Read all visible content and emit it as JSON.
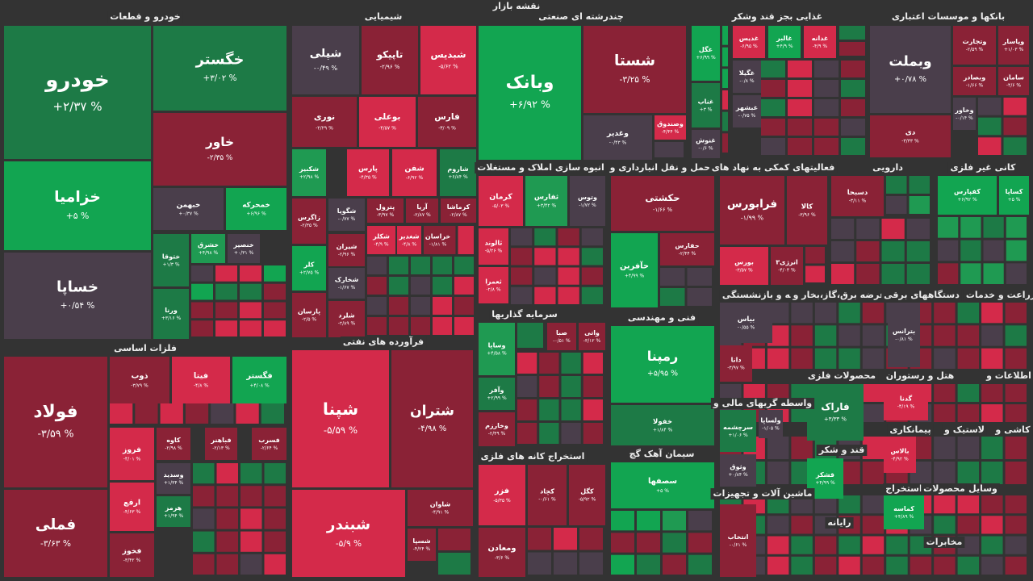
{
  "title": "نقشه بازار",
  "sectors": [
    {
      "title": "خودرو و قطعات",
      "tiles": [
        {
          "name": "خودرو",
          "change": "+۲/۳۷ %",
          "color": "#1d7a46"
        },
        {
          "name": "خگستر",
          "change": "+۳/۰۲ %",
          "color": "#1d7a46"
        },
        {
          "name": "خاور",
          "change": "-۲/۳۵ %",
          "color": "#8a2236"
        },
        {
          "name": "خزامیا",
          "change": "+۵ %",
          "color": "#12a551"
        },
        {
          "name": "خساپا",
          "change": "+۰/۵۴ %",
          "color": "#4a3e4b"
        },
        {
          "name": "خبهمن",
          "change": "+۰/۳۷ %",
          "color": "#4a3e4b"
        },
        {
          "name": "خمحرکه",
          "change": "+۶/۹۶ %",
          "color": "#12a551"
        },
        {
          "name": "خشرق",
          "change": "+۴/۹۸ %",
          "color": "#1f9a52"
        },
        {
          "name": "خنصیر",
          "change": "+۰/۳۱ %",
          "color": "#4a3e4b"
        },
        {
          "name": "ختوقا",
          "change": "+۱/۳ %",
          "color": "#1d7a46"
        },
        {
          "name": "ورنا",
          "change": "+۳/۱۶ %",
          "color": "#1d7a46"
        }
      ]
    },
    {
      "title": "شیمیایی",
      "tiles": [
        {
          "name": "شپلی",
          "change": "-۰/۴۹ %",
          "color": "#4a3e4b"
        },
        {
          "name": "تاپیکو",
          "change": "-۲/۹۶ %",
          "color": "#8a2236"
        },
        {
          "name": "شبدیس",
          "change": "-۵/۶۲ %",
          "color": "#d42a4a"
        },
        {
          "name": "نوری",
          "change": "-۲/۲۹ %",
          "color": "#8a2236"
        },
        {
          "name": "بوعلی",
          "change": "-۴/۵۷ %",
          "color": "#d42a4a"
        },
        {
          "name": "فارس",
          "change": "-۳/۰۹ %",
          "color": "#8a2236"
        },
        {
          "name": "شکبیر",
          "change": "+۲/۹۸ %",
          "color": "#1f9a52"
        },
        {
          "name": "پارس",
          "change": "-۴/۳۵ %",
          "color": "#d42a4a"
        },
        {
          "name": "شفن",
          "change": "-۶/۹۲ %",
          "color": "#d42a4a"
        },
        {
          "name": "شاروم",
          "change": "+۶/۸۴ %",
          "color": "#1d7a46"
        },
        {
          "name": "زاگرس",
          "change": "-۲/۳۵ %",
          "color": "#8a2236"
        },
        {
          "name": "شگویا",
          "change": "-۰/۷۷ %",
          "color": "#4a3e4b"
        },
        {
          "name": "پترول",
          "change": "-۳/۹۷ %",
          "color": "#8a2236"
        },
        {
          "name": "آریا",
          "change": "-۲/۸۷ %",
          "color": "#8a2236"
        },
        {
          "name": "کرماشا",
          "change": "-۲/۸۷ %",
          "color": "#8a2236"
        },
        {
          "name": "کلر",
          "change": "+۲/۷۵ %",
          "color": "#12a551"
        },
        {
          "name": "شیران",
          "change": "-۲/۹۶ %",
          "color": "#8a2236"
        },
        {
          "name": "شکلر",
          "change": "-۴/۹ %",
          "color": "#d42a4a"
        },
        {
          "name": "شغدیر",
          "change": "-۴/۸ %",
          "color": "#d42a4a"
        },
        {
          "name": "خراسان",
          "change": "-۱/۸۱ %",
          "color": "#8a2236"
        },
        {
          "name": "شخارک",
          "change": "-۱/۶۷ %",
          "color": "#4a3e4b"
        },
        {
          "name": "پارسان",
          "change": "-۲/۵ %",
          "color": "#8a2236"
        },
        {
          "name": "شلرد",
          "change": "-۲/۸۹ %",
          "color": "#8a2236"
        }
      ]
    },
    {
      "title": "فلزات اساسی",
      "tiles": [
        {
          "name": "فولاد",
          "change": "-۳/۵۹ %",
          "color": "#8a2236"
        },
        {
          "name": "فملی",
          "change": "-۳/۶۳ %",
          "color": "#8a2236"
        },
        {
          "name": "ذوب",
          "change": "-۳/۷۹ %",
          "color": "#8a2236"
        },
        {
          "name": "فیتا",
          "change": "-۴/۸ %",
          "color": "#d42a4a"
        },
        {
          "name": "فگستر",
          "change": "+۴/۰۸ %",
          "color": "#12a551"
        },
        {
          "name": "فروز",
          "change": "-۴/۰۱ %",
          "color": "#d42a4a"
        },
        {
          "name": "کاوه",
          "change": "-۲/۹۸ %",
          "color": "#8a2236"
        },
        {
          "name": "فباهنر",
          "change": "-۲/۱۳ %",
          "color": "#8a2236"
        },
        {
          "name": "فسرب",
          "change": "-۲/۶۴ %",
          "color": "#8a2236"
        },
        {
          "name": "ارفع",
          "change": "-۴/۶۳ %",
          "color": "#d42a4a"
        },
        {
          "name": "وسدید",
          "change": "+۱/۳۴ %",
          "color": "#4a3e4b"
        },
        {
          "name": "هرمز",
          "change": "+۱/۹۴ %",
          "color": "#1d7a46"
        },
        {
          "name": "فخوز",
          "change": "-۳/۴۲ %",
          "color": "#8a2236"
        }
      ]
    },
    {
      "title": "فرآورده های نفتی",
      "tiles": [
        {
          "name": "شپنا",
          "change": "-۵/۵۹ %",
          "color": "#d42a4a"
        },
        {
          "name": "شتران",
          "change": "-۴/۹۸ %",
          "color": "#8a2236"
        },
        {
          "name": "شبندر",
          "change": "-۵/۹ %",
          "color": "#d42a4a"
        },
        {
          "name": "شاوان",
          "change": "-۴/۹۱ %",
          "color": "#8a2236"
        },
        {
          "name": "شسپا",
          "change": "-۴/۲۴ %",
          "color": "#8a2236"
        }
      ]
    },
    {
      "title": "چندرشته ای صنعتی",
      "tiles": [
        {
          "name": "وبانک",
          "change": "+۶/۹۲ %",
          "color": "#12a551"
        },
        {
          "name": "شستا",
          "change": "-۳/۲۵ %",
          "color": "#8a2236"
        },
        {
          "name": "وغدیر",
          "change": "-۰/۴۳ %",
          "color": "#4a3e4b"
        },
        {
          "name": "وصندوق",
          "change": "-۴/۴۴ %",
          "color": "#d42a4a"
        }
      ]
    },
    {
      "title": "انبوه سازی املاک و مستغلات",
      "tiles": [
        {
          "name": "کرمان",
          "change": "-۵/۰۳ %",
          "color": "#d42a4a"
        },
        {
          "name": "ثفارس",
          "change": "+۳/۴۲ %",
          "color": "#1f9a52"
        },
        {
          "name": "وتوس",
          "change": "-۱/۷۲ %",
          "color": "#4a3e4b"
        },
        {
          "name": "ثالوند",
          "change": "-۵/۲۶ %",
          "color": "#d42a4a"
        },
        {
          "name": "ثعمرا",
          "change": "-۲/۸ %",
          "color": "#d42a4a"
        }
      ]
    },
    {
      "title": "حمل و نقل انبارداری و",
      "tiles": [
        {
          "name": "حکشتی",
          "change": "-۱/۶۶ %",
          "color": "#8a2236"
        },
        {
          "name": "حفارس",
          "change": "-۲/۴۴ %",
          "color": "#8a2236"
        },
        {
          "name": "حآفرین",
          "change": "+۴/۹۹ %",
          "color": "#12a551"
        }
      ]
    },
    {
      "title": "سرمایه گذاریها",
      "tiles": [
        {
          "name": "صبا",
          "change": "-۰/۵۱ %",
          "color": "#8a2236"
        },
        {
          "name": "واتی",
          "change": "-۳/۱۲ %",
          "color": "#8a2236"
        },
        {
          "name": "وساپا",
          "change": "+۴/۵۸ %",
          "color": "#1f9a52"
        },
        {
          "name": "وآفر",
          "change": "+۲/۹۹ %",
          "color": "#1d7a46"
        },
        {
          "name": "وخارزم",
          "change": "-۲/۴۹ %",
          "color": "#8a2236"
        }
      ]
    },
    {
      "title": "فنی و مهندسی",
      "tiles": [
        {
          "name": "رمپنا",
          "change": "+۵/۹۵ %",
          "color": "#12a551"
        },
        {
          "name": "خفولا",
          "change": "+۱/۸۴ %",
          "color": "#1d7a46"
        }
      ]
    },
    {
      "title": "استخراج کانه های فلزی",
      "tiles": [
        {
          "name": "فزر",
          "change": "-۵/۳۵ %",
          "color": "#d42a4a"
        },
        {
          "name": "کچاد",
          "change": "-۰/۶۱ %",
          "color": "#8a2236"
        },
        {
          "name": "کگل",
          "change": "-۵/۹۲ %",
          "color": "#8a2236"
        },
        {
          "name": "ومعادن",
          "change": "-۳/۶ %",
          "color": "#8a2236"
        }
      ]
    },
    {
      "title": "سیمان آهک گچ",
      "tiles": [
        {
          "name": "سصفها",
          "change": "+۵ %",
          "color": "#12a551"
        }
      ]
    },
    {
      "title": "غذایی بجز قند وشکر",
      "tiles": [
        {
          "name": "غگل",
          "change": "+۶/۹۹ %",
          "color": "#12a551"
        },
        {
          "name": "غدیس",
          "change": "-۶/۹۵ %",
          "color": "#d42a4a"
        },
        {
          "name": "غالبر",
          "change": "+۴/۹ %",
          "color": "#12a551"
        },
        {
          "name": "غدانه",
          "change": "-۴/۹ %",
          "color": "#d42a4a"
        },
        {
          "name": "غگیلا",
          "change": "-۰/۸ %",
          "color": "#4a3e4b"
        },
        {
          "name": "غناب",
          "change": "+۳ %",
          "color": "#1d7a46"
        },
        {
          "name": "غبشهر",
          "change": "-۰/۷۵ %",
          "color": "#4a3e4b"
        },
        {
          "name": "غنوش",
          "change": "-۰/۶ %",
          "color": "#4a3e4b"
        }
      ]
    },
    {
      "title": "بانکها و موسسات اعتباری",
      "tiles": [
        {
          "name": "وبملت",
          "change": "+۰/۷۸ %",
          "color": "#4a3e4b"
        },
        {
          "name": "دی",
          "change": "-۳/۳۳ %",
          "color": "#8a2236"
        },
        {
          "name": "وتجارت",
          "change": "-۲/۵۹ %",
          "color": "#8a2236"
        },
        {
          "name": "وپاسار",
          "change": "+۱/۰۳ %",
          "color": "#8a2236"
        },
        {
          "name": "وبصادر",
          "change": "-۱/۶۶ %",
          "color": "#8a2236"
        },
        {
          "name": "سامان",
          "change": "-۴/۶ %",
          "color": "#8a2236"
        },
        {
          "name": "وخاور",
          "change": "-۰/۱۴ %",
          "color": "#4a3e4b"
        }
      ]
    },
    {
      "title": "فعالیتهای کمکی به نهاد های",
      "tiles": [
        {
          "name": "فرابورس",
          "change": "-۱/۹۹ %",
          "color": "#8a2236"
        },
        {
          "name": "کالا",
          "change": "-۳/۹۶ %",
          "color": "#8a2236"
        },
        {
          "name": "بورس",
          "change": "-۳/۵۷ %",
          "color": "#d42a4a"
        },
        {
          "name": "انرژی۳",
          "change": "-۴/۰۴ %",
          "color": "#8a2236"
        }
      ]
    },
    {
      "title": "دارویی",
      "tiles": [
        {
          "name": "دسبحا",
          "change": "-۳/۱۱ %",
          "color": "#8a2236"
        }
      ]
    },
    {
      "title": "کانی غیر فلزی",
      "tiles": [
        {
          "name": "کفپارس",
          "change": "+۶/۹۲ %",
          "color": "#12a551"
        },
        {
          "name": "کساپا",
          "change": "+۵ %",
          "color": "#12a551"
        }
      ]
    },
    {
      "title": "بیمه و بازنشستگی",
      "tiles": [
        {
          "name": "بیاس",
          "change": "-۰/۵۵ %",
          "color": "#4a3e4b"
        },
        {
          "name": "دانا",
          "change": "-۳/۹۷ %",
          "color": "#8a2236"
        }
      ]
    },
    {
      "title": "عرضه برق،گاز،بخار و"
    },
    {
      "title": "دستگاههای برقی",
      "tiles": [
        {
          "name": "بترانس",
          "change": "-۰/۸۱ %",
          "color": "#4a3e4b"
        }
      ]
    },
    {
      "title": "زراعت و خدمات"
    },
    {
      "title": "محصولات فلزی",
      "tiles": [
        {
          "name": "فاراک",
          "change": "+۳/۳۳ %",
          "color": "#1d7a46"
        }
      ]
    },
    {
      "title": "هتل و رستوران",
      "tiles": [
        {
          "name": "گدنا",
          "change": "-۴/۱۹ %",
          "color": "#d42a4a"
        }
      ]
    },
    {
      "title": "اطلاعات و"
    },
    {
      "title": "واسطه گریهای مالی و",
      "tiles": [
        {
          "name": "سرچشمه",
          "change": "+۱/۰۶ %",
          "color": "#1d7a46"
        },
        {
          "name": "ولساپا",
          "change": "-۱/۰۵ %",
          "color": "#4a3e4b"
        },
        {
          "name": "وثوق",
          "change": "+۰/۸۴ %",
          "color": "#4a3e4b"
        }
      ]
    },
    {
      "title": "قند و شکر",
      "tiles": [
        {
          "name": "قشکر",
          "change": "+۴/۹۹ %",
          "color": "#12a551"
        }
      ]
    },
    {
      "title": "پیمانکاری",
      "tiles": [
        {
          "name": "بالاس",
          "change": "-۴/۹۲ %",
          "color": "#d42a4a"
        }
      ]
    },
    {
      "title": "لاستیک و"
    },
    {
      "title": "کاشی و"
    },
    {
      "title": "ماشین آلات و تجهیزات",
      "tiles": [
        {
          "name": "انتخاب",
          "change": "-۰/۶۱ %",
          "color": "#8a2236"
        }
      ]
    },
    {
      "title": "رایانه"
    },
    {
      "title": "استخراج",
      "tiles": [
        {
          "name": "کماسه",
          "change": "+۴/۸۹ %",
          "color": "#12a551"
        }
      ]
    },
    {
      "title": "محصولات"
    },
    {
      "title": "وسایل"
    },
    {
      "title": "مخابرات"
    }
  ]
}
